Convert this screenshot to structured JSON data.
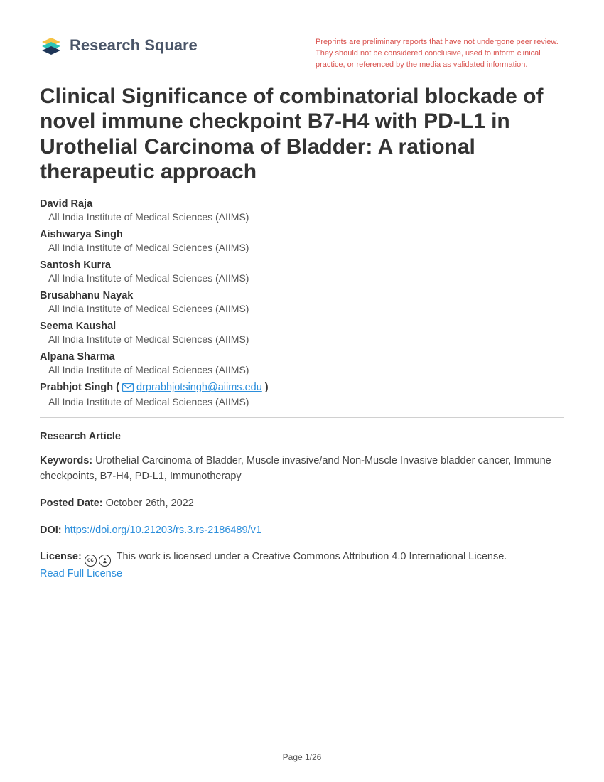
{
  "brand": {
    "name_part1": "Research",
    "name_part2": "Square",
    "logo_colors": {
      "teal": "#2ec4b6",
      "yellow": "#f6c344",
      "navy": "#1d3557"
    }
  },
  "disclaimer": "Preprints are preliminary reports that have not undergone peer review. They should not be considered conclusive, used to inform clinical practice, or referenced by the media as validated information.",
  "title": "Clinical Significance of combinatorial blockade of novel immune checkpoint B7-H4 with PD-L1 in Urothelial Carcinoma of Bladder: A rational therapeutic approach",
  "authors": [
    {
      "name": "David Raja",
      "affiliation": "All India Institute of Medical Sciences (AIIMS)"
    },
    {
      "name": "Aishwarya Singh",
      "affiliation": "All India Institute of Medical Sciences (AIIMS)"
    },
    {
      "name": "Santosh Kurra",
      "affiliation": "All India Institute of Medical Sciences (AIIMS)"
    },
    {
      "name": "Brusabhanu Nayak",
      "affiliation": "All India Institute of Medical Sciences (AIIMS)"
    },
    {
      "name": "Seema Kaushal",
      "affiliation": "All India Institute of Medical Sciences (AIIMS)"
    },
    {
      "name": "Alpana Sharma",
      "affiliation": "All India Institute of Medical Sciences (AIIMS)"
    }
  ],
  "corresponding": {
    "name": "Prabhjot Singh",
    "email": "drprabhjotsingh@aiims.edu",
    "affiliation": "All India Institute of Medical Sciences (AIIMS)"
  },
  "article_type": "Research Article",
  "keywords_label": "Keywords:",
  "keywords": "Urothelial Carcinoma of Bladder, Muscle invasive/and Non-Muscle Invasive bladder cancer, Immune checkpoints, B7-H4, PD-L1, Immunotherapy",
  "posted_label": "Posted Date:",
  "posted_date": "October 26th, 2022",
  "doi_label": "DOI:",
  "doi": "https://doi.org/10.21203/rs.3.rs-2186489/v1",
  "license_label": "License:",
  "license_text": "This work is licensed under a Creative Commons Attribution 4.0 International License.",
  "license_link_text": "Read Full License",
  "page_indicator": "Page 1/26",
  "colors": {
    "text": "#333333",
    "subtext": "#555555",
    "link": "#2b8edb",
    "warning": "#d9534f",
    "divider": "#d0d0d0",
    "background": "#ffffff"
  }
}
